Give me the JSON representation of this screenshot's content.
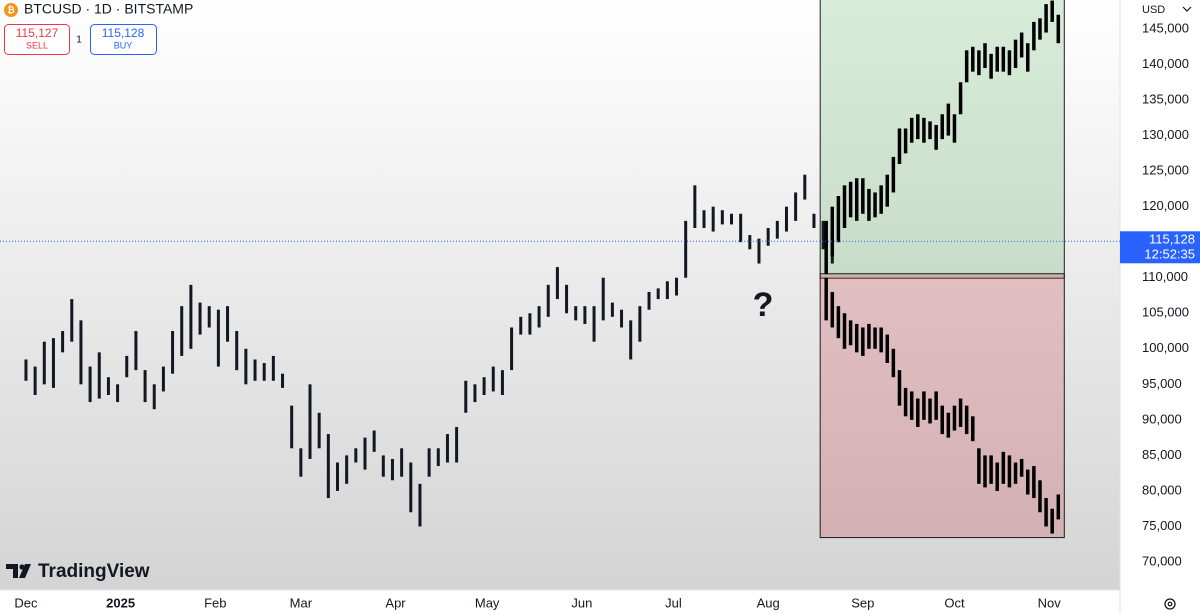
{
  "header": {
    "symbol": "BTCUSD · 1D · BITSTAMP",
    "sell_price": "115,127",
    "sell_label": "SELL",
    "spread": "1",
    "buy_price": "115,128",
    "buy_label": "BUY",
    "currency": "USD",
    "watermark": "TradingView"
  },
  "chart_data": {
    "type": "range-bar",
    "color": "#131722",
    "x": [
      0,
      3,
      6,
      9,
      12,
      15,
      18,
      21,
      24,
      27,
      30,
      33,
      36,
      39,
      42,
      45,
      48,
      51,
      54,
      57,
      60,
      63,
      66,
      69,
      72,
      75,
      78,
      81,
      84,
      87,
      90,
      93,
      96,
      99,
      102,
      105,
      108,
      111,
      114,
      117,
      120,
      123,
      126,
      129,
      132,
      135,
      138,
      141,
      144,
      147,
      150,
      153,
      156,
      159,
      162,
      165,
      168,
      171,
      174,
      177,
      180,
      183,
      186,
      189,
      192,
      195,
      198,
      201,
      204,
      207,
      210,
      213,
      216,
      219,
      222,
      225,
      228,
      231,
      234,
      237,
      240,
      243,
      246,
      249,
      252,
      255,
      258,
      261,
      264
    ],
    "low": [
      95500,
      93500,
      95000,
      94500,
      99500,
      101000,
      95000,
      92500,
      93000,
      93500,
      92500,
      96000,
      97000,
      92500,
      91500,
      94000,
      96500,
      99000,
      100000,
      102000,
      103000,
      97500,
      101000,
      97000,
      95000,
      95500,
      95500,
      95500,
      94500,
      86000,
      82000,
      84500,
      86000,
      79000,
      80000,
      81000,
      84000,
      83000,
      85500,
      82000,
      81500,
      82000,
      77000,
      75000,
      82000,
      83500,
      84000,
      84000,
      91000,
      92500,
      93500,
      94000,
      93500,
      97000,
      102000,
      102000,
      103000,
      104500,
      107000,
      105000,
      104000,
      103500,
      101000,
      104000,
      104500,
      103000,
      98500,
      101000,
      105500,
      107000,
      107000,
      107500,
      110000,
      117000,
      117000,
      116500,
      117500,
      117500,
      115000,
      114000,
      112000,
      114500,
      115500,
      116500,
      118000,
      121000,
      117000,
      114000,
      112000
    ],
    "high": [
      98500,
      97500,
      101000,
      101500,
      102500,
      107000,
      104000,
      97500,
      99500,
      96000,
      95000,
      99000,
      102500,
      97000,
      95000,
      97500,
      102500,
      106000,
      109000,
      106500,
      106000,
      105500,
      106000,
      102500,
      100000,
      98500,
      98000,
      99000,
      96500,
      92000,
      86000,
      95000,
      91000,
      88000,
      84000,
      85000,
      86000,
      87500,
      88500,
      85000,
      84500,
      86000,
      84000,
      81000,
      86000,
      86000,
      88000,
      89000,
      95500,
      95000,
      96000,
      97500,
      97000,
      103000,
      104500,
      105000,
      106000,
      109000,
      111500,
      109000,
      106000,
      106000,
      106000,
      110000,
      106500,
      105500,
      104000,
      106000,
      108000,
      108500,
      109500,
      110000,
      118000,
      123000,
      119500,
      120000,
      119500,
      119000,
      119000,
      116000,
      115500,
      117000,
      118000,
      120000,
      122000,
      124500,
      119000,
      118000,
      116500
    ],
    "xlim": [
      -8.5,
      358.2
    ],
    "xticks": [
      {
        "value": 0,
        "label": "Dec"
      },
      {
        "value": 31,
        "label": "2025"
      },
      {
        "value": 62,
        "label": "Feb"
      },
      {
        "value": 90,
        "label": "Mar"
      },
      {
        "value": 121,
        "label": "Apr"
      },
      {
        "value": 151,
        "label": "May"
      },
      {
        "value": 182,
        "label": "Jun"
      },
      {
        "value": 212,
        "label": "Jul"
      },
      {
        "value": 243,
        "label": "Aug"
      },
      {
        "value": 274,
        "label": "Sep"
      },
      {
        "value": 304,
        "label": "Oct"
      },
      {
        "value": 335,
        "label": "Nov"
      }
    ],
    "ylim": [
      66060,
      149080
    ],
    "yticks": [
      {
        "value": 70000,
        "label": "70,000"
      },
      {
        "value": 75000,
        "label": "75,000"
      },
      {
        "value": 80000,
        "label": "80,000"
      },
      {
        "value": 85000,
        "label": "85,000"
      },
      {
        "value": 90000,
        "label": "90,000"
      },
      {
        "value": 95000,
        "label": "95,000"
      },
      {
        "value": 100000,
        "label": "100,000"
      },
      {
        "value": 105000,
        "label": "105,000"
      },
      {
        "value": 110000,
        "label": "110,000"
      },
      {
        "value": 115000,
        "label": "115,000"
      },
      {
        "value": 120000,
        "label": "120,000"
      },
      {
        "value": 125000,
        "label": "125,000"
      },
      {
        "value": 130000,
        "label": "130,000"
      },
      {
        "value": 135000,
        "label": "135,000"
      },
      {
        "value": 140000,
        "label": "140,000"
      },
      {
        "value": 145000,
        "label": "145,000"
      }
    ],
    "last_price": {
      "value": 115128,
      "label": "115,128",
      "countdown": "12:52:35",
      "color": "#2962ff"
    },
    "annotation": "?",
    "scenarios": [
      {
        "fill": "rgba(76,175,80,0.22)",
        "color": "#000000",
        "x": [
          262,
          264,
          266,
          268,
          270,
          272,
          274,
          276,
          278,
          280,
          282,
          284,
          286,
          288,
          290,
          292,
          294,
          296,
          298,
          300,
          302,
          304,
          306,
          308,
          310,
          312,
          314,
          316,
          318,
          320,
          322,
          324,
          326,
          328,
          330,
          332,
          334,
          336,
          338
        ],
        "low": [
          110500,
          113000,
          115000,
          117000,
          118500,
          118000,
          119000,
          118000,
          118500,
          119000,
          120000,
          122000,
          126000,
          127500,
          129000,
          129500,
          129000,
          129500,
          128000,
          129500,
          130000,
          129000,
          133000,
          137500,
          139000,
          138500,
          139500,
          138000,
          139000,
          139000,
          138500,
          139500,
          141000,
          139000,
          142000,
          143500,
          144500,
          146000,
          143000
        ],
        "high": [
          118000,
          120000,
          121500,
          123000,
          123500,
          124000,
          124000,
          122500,
          122000,
          123000,
          124500,
          127000,
          131000,
          131000,
          132500,
          133000,
          132500,
          132000,
          131500,
          133000,
          134500,
          133000,
          137500,
          142000,
          142500,
          142000,
          143000,
          141500,
          142500,
          142500,
          142000,
          143500,
          144500,
          143000,
          146000,
          146500,
          148500,
          149000,
          147000
        ]
      },
      {
        "fill": "rgba(200,60,70,0.25)",
        "color": "#000000",
        "x": [
          262,
          264,
          266,
          268,
          270,
          272,
          274,
          276,
          278,
          280,
          282,
          284,
          286,
          288,
          290,
          292,
          294,
          296,
          298,
          300,
          302,
          304,
          306,
          308,
          310,
          312,
          314,
          316,
          318,
          320,
          322,
          324,
          326,
          328,
          330,
          332,
          334,
          336,
          338
        ],
        "low": [
          104000,
          103000,
          101500,
          100000,
          100500,
          99500,
          99000,
          100000,
          100000,
          99500,
          98000,
          96000,
          92000,
          90500,
          90000,
          89000,
          90000,
          89500,
          90000,
          88000,
          87500,
          88500,
          89000,
          88000,
          87000,
          81000,
          80500,
          81000,
          80000,
          81000,
          80500,
          81000,
          82000,
          79500,
          79000,
          77000,
          75000,
          74000,
          76000
        ],
        "high": [
          110000,
          108000,
          106000,
          105000,
          104000,
          103500,
          103000,
          103500,
          103000,
          103000,
          102000,
          100000,
          97000,
          94500,
          94000,
          93000,
          94000,
          93000,
          94000,
          92000,
          91000,
          92000,
          93000,
          92000,
          90500,
          86000,
          85000,
          85000,
          84000,
          85500,
          85000,
          84000,
          84500,
          83000,
          83500,
          81500,
          79000,
          77500,
          79500
        ]
      }
    ]
  }
}
